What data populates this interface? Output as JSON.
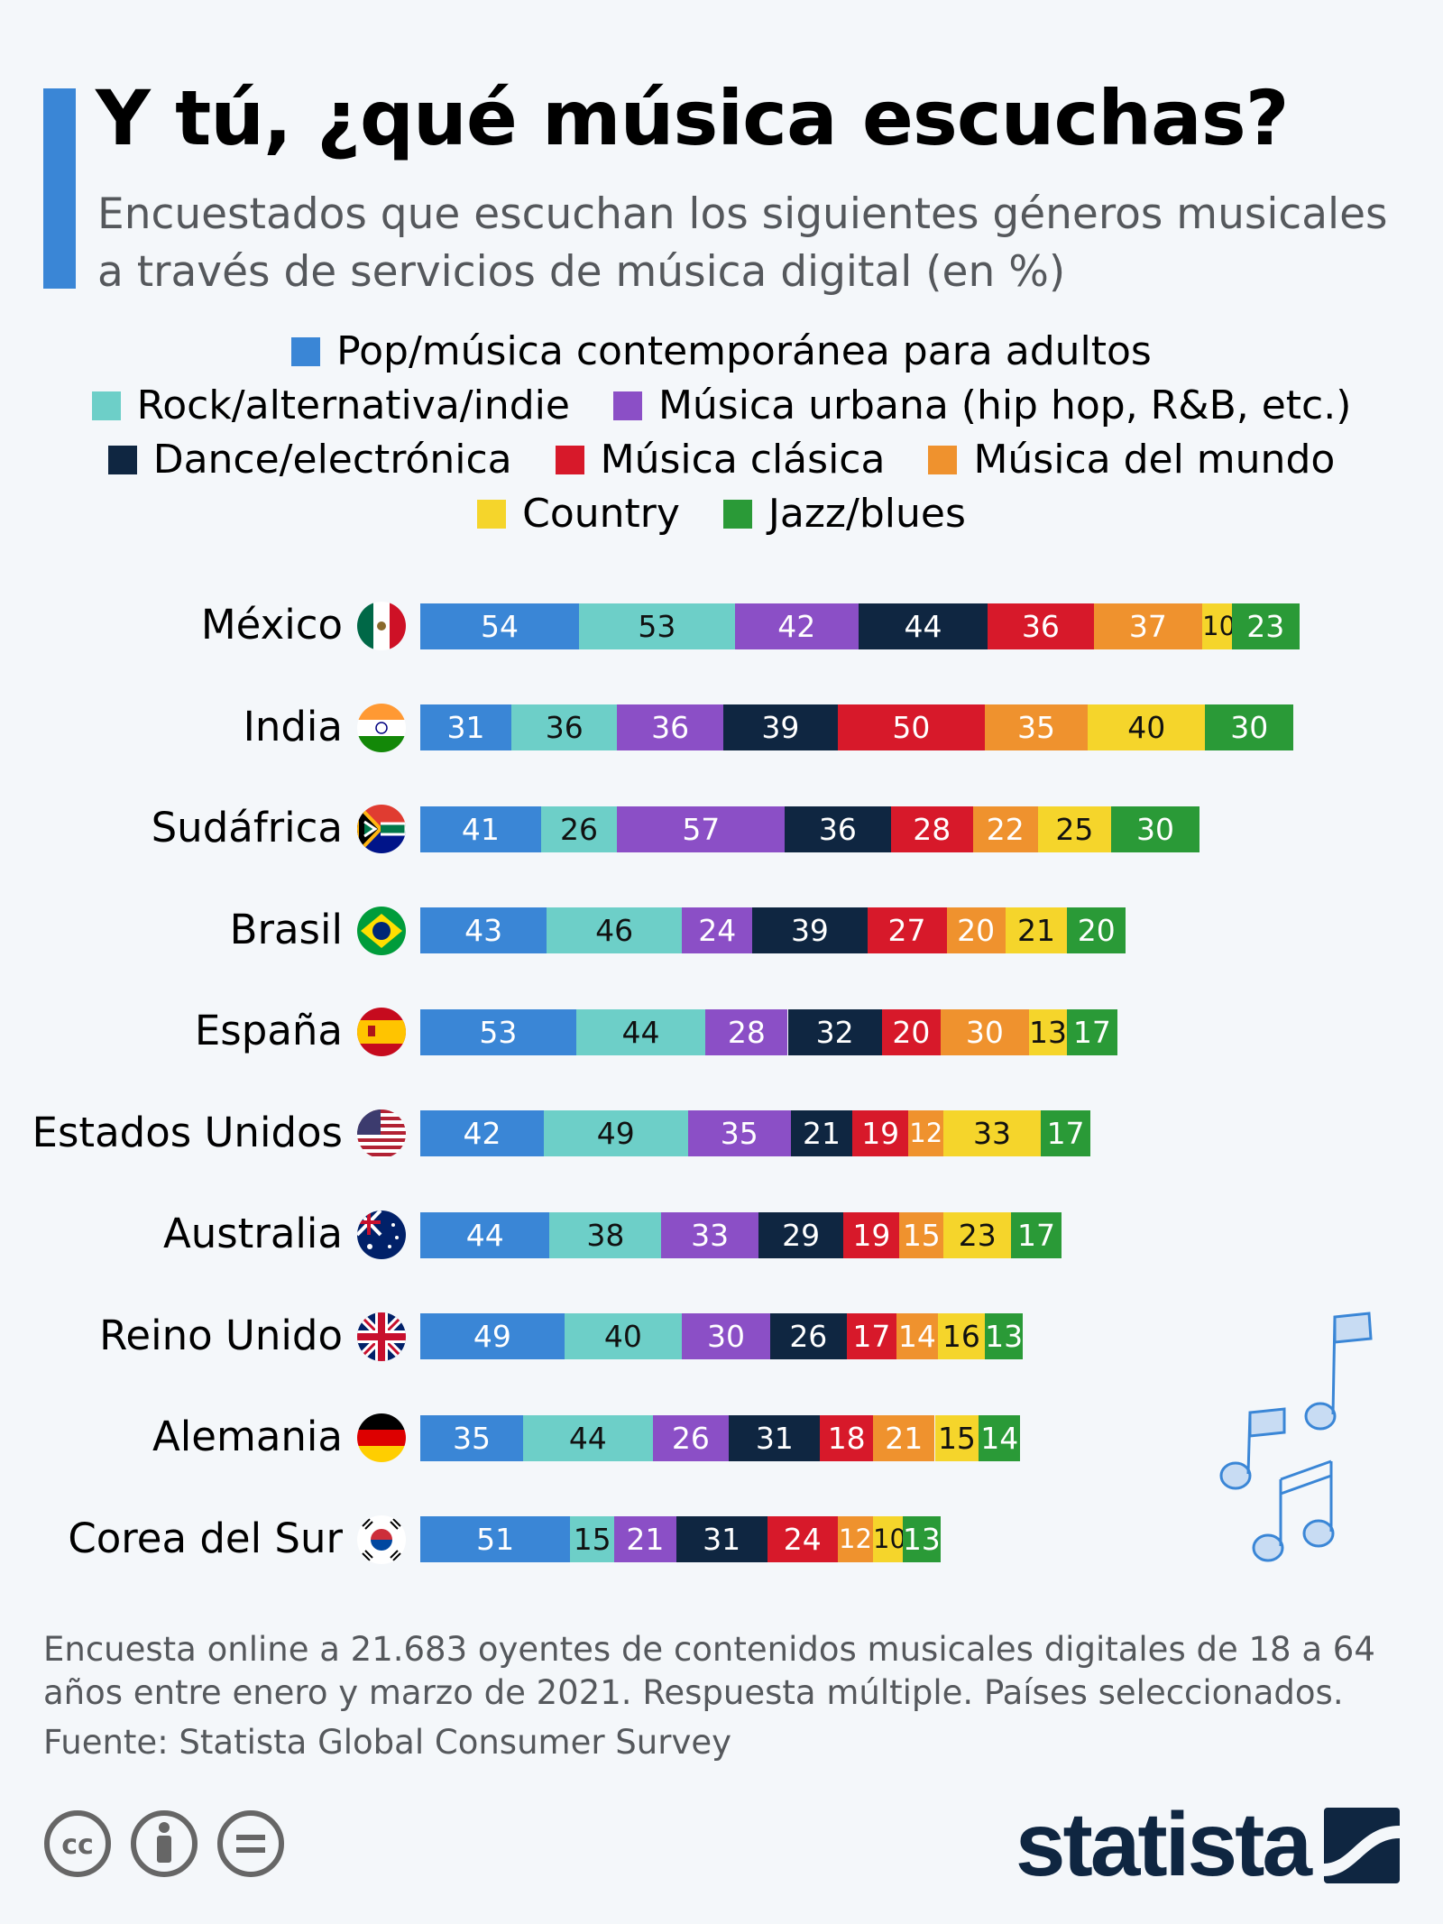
{
  "chart_data": {
    "type": "bar",
    "orientation": "horizontal",
    "stacked": true,
    "title": "Y tú, ¿qué música escuchas?",
    "subtitle": "Encuestados que escuchan los siguientes géneros musicales a través de servicios de música digital (en %)",
    "legend_placement": "top",
    "grid": false,
    "categories": [
      "México",
      "India",
      "Sudáfrica",
      "Brasil",
      "España",
      "Estados Unidos",
      "Australia",
      "Reino Unido",
      "Alemania",
      "Corea del Sur"
    ],
    "series": [
      {
        "name": "Pop/música contemporánea para adultos",
        "color": "#3a86d6",
        "label_color": "#ffffff",
        "values": [
          54,
          31,
          41,
          43,
          53,
          42,
          44,
          49,
          35,
          51
        ]
      },
      {
        "name": "Rock/alternativa/indie",
        "color": "#6dcfc8",
        "label_color": "#111111",
        "values": [
          53,
          36,
          26,
          46,
          44,
          49,
          38,
          40,
          44,
          15
        ]
      },
      {
        "name": "Música urbana (hip hop, R&B, etc.)",
        "color": "#8b4fc6",
        "label_color": "#ffffff",
        "values": [
          42,
          36,
          57,
          24,
          28,
          35,
          33,
          30,
          26,
          21
        ]
      },
      {
        "name": "Dance/electrónica",
        "color": "#0f2641",
        "label_color": "#ffffff",
        "values": [
          44,
          39,
          36,
          39,
          32,
          21,
          29,
          26,
          31,
          31
        ]
      },
      {
        "name": "Música clásica",
        "color": "#d7192a",
        "label_color": "#ffffff",
        "values": [
          36,
          50,
          28,
          27,
          20,
          19,
          19,
          17,
          18,
          24
        ]
      },
      {
        "name": "Música del mundo",
        "color": "#ef922e",
        "label_color": "#ffffff",
        "values": [
          37,
          35,
          22,
          20,
          30,
          12,
          15,
          14,
          21,
          12
        ]
      },
      {
        "name": "Country",
        "color": "#f5d52b",
        "label_color": "#111111",
        "values": [
          10,
          40,
          25,
          21,
          13,
          33,
          23,
          16,
          15,
          10
        ]
      },
      {
        "name": "Jazz/blues",
        "color": "#2a9a37",
        "label_color": "#ffffff",
        "values": [
          23,
          30,
          30,
          20,
          17,
          17,
          17,
          13,
          14,
          13
        ]
      }
    ]
  },
  "footer": {
    "note": "Encuesta online a 21.683 oyentes de contenidos musicales digitales de 18 a 64 años entre enero y marzo de 2021. Respuesta múltiple. Países seleccionados.",
    "source": "Fuente: Statista Global Consumer Survey",
    "brand": "statista",
    "license_icons": [
      "cc-icon",
      "attribution-icon",
      "no-derivatives-icon"
    ]
  }
}
